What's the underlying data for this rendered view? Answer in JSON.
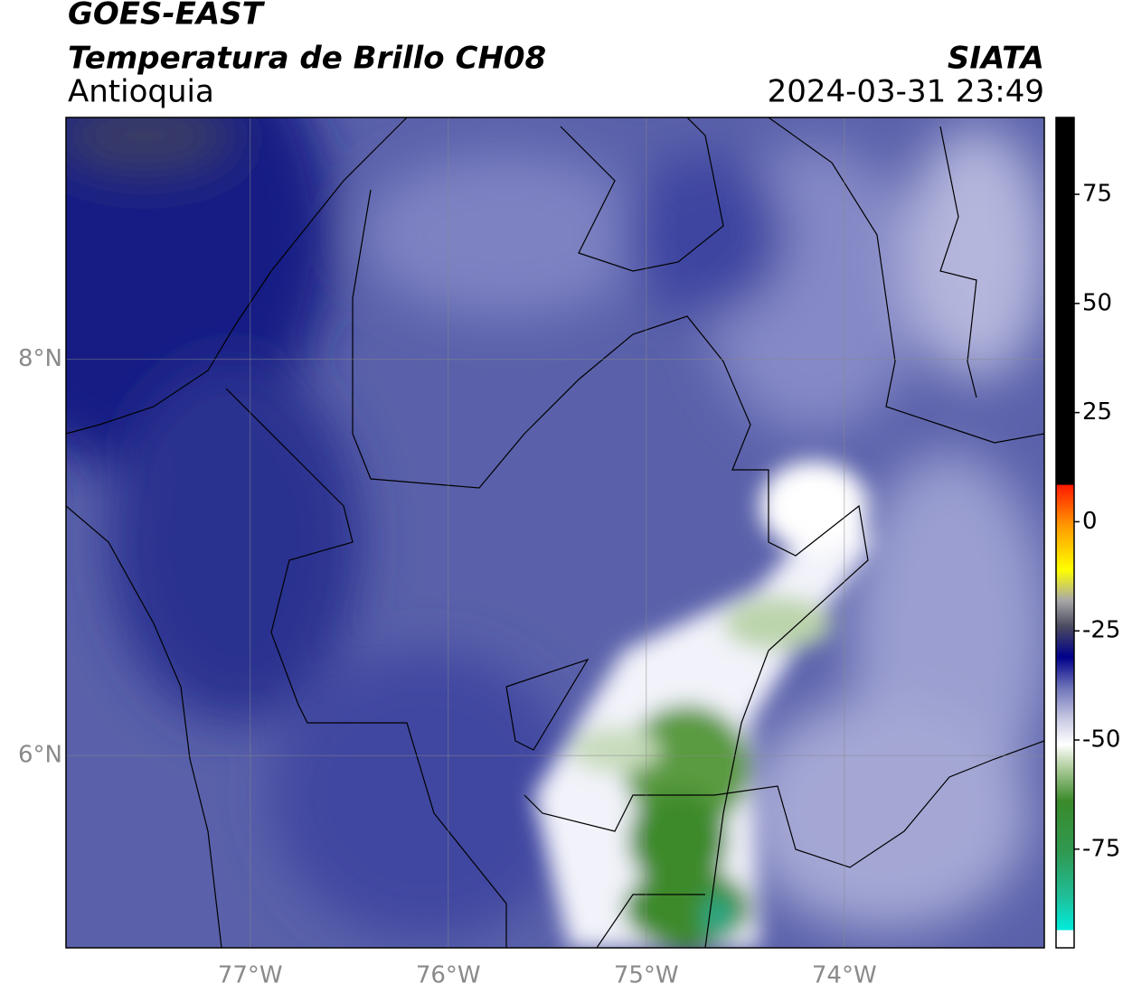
{
  "header": {
    "satellite": "GOES-EAST",
    "product": "Temperatura de Brillo CH08",
    "region": "Antioquia",
    "agency": "SIATA",
    "datetime": "2024-03-31 23:49"
  },
  "map": {
    "lonlim": [
      -77.93,
      -72.99
    ],
    "latlim": [
      5.03,
      9.22
    ],
    "lonticks": [
      {
        "value": -77,
        "label": "77°W"
      },
      {
        "value": -76,
        "label": "76°W"
      },
      {
        "value": -75,
        "label": "75°W"
      },
      {
        "value": -74,
        "label": "74°W"
      }
    ],
    "latticks": [
      {
        "value": 6,
        "label": "6°N"
      },
      {
        "value": 8,
        "label": "8°N"
      }
    ],
    "grid": true
  },
  "colorbar": {
    "range": [
      -97.6,
      92.6
    ],
    "ticks": [
      -75,
      -50,
      -25,
      0,
      25,
      50,
      75
    ],
    "stops": [
      {
        "value": -97.6,
        "color": "#ffffff"
      },
      {
        "value": -93.6,
        "color": "#ffffff"
      },
      {
        "value": -93.5,
        "color": "#00ecdc"
      },
      {
        "value": -86,
        "color": "#1fbf9a"
      },
      {
        "value": -76,
        "color": "#2f9a52"
      },
      {
        "value": -64,
        "color": "#3a8a2a"
      },
      {
        "value": -56,
        "color": "#b4d0a2"
      },
      {
        "value": -51,
        "color": "#ffffff"
      },
      {
        "value": -45,
        "color": "#c6c8e2"
      },
      {
        "value": -38,
        "color": "#6e73b8"
      },
      {
        "value": -31,
        "color": "#00008a"
      },
      {
        "value": -24,
        "color": "#4a4a60"
      },
      {
        "value": -18,
        "color": "#a8a8a8"
      },
      {
        "value": -11,
        "color": "#ffff00"
      },
      {
        "value": -1,
        "color": "#ff9a00"
      },
      {
        "value": 8.4,
        "color": "#ff1a00"
      },
      {
        "value": 8.5,
        "color": "#000000"
      },
      {
        "value": 92.6,
        "color": "#000000"
      }
    ]
  }
}
